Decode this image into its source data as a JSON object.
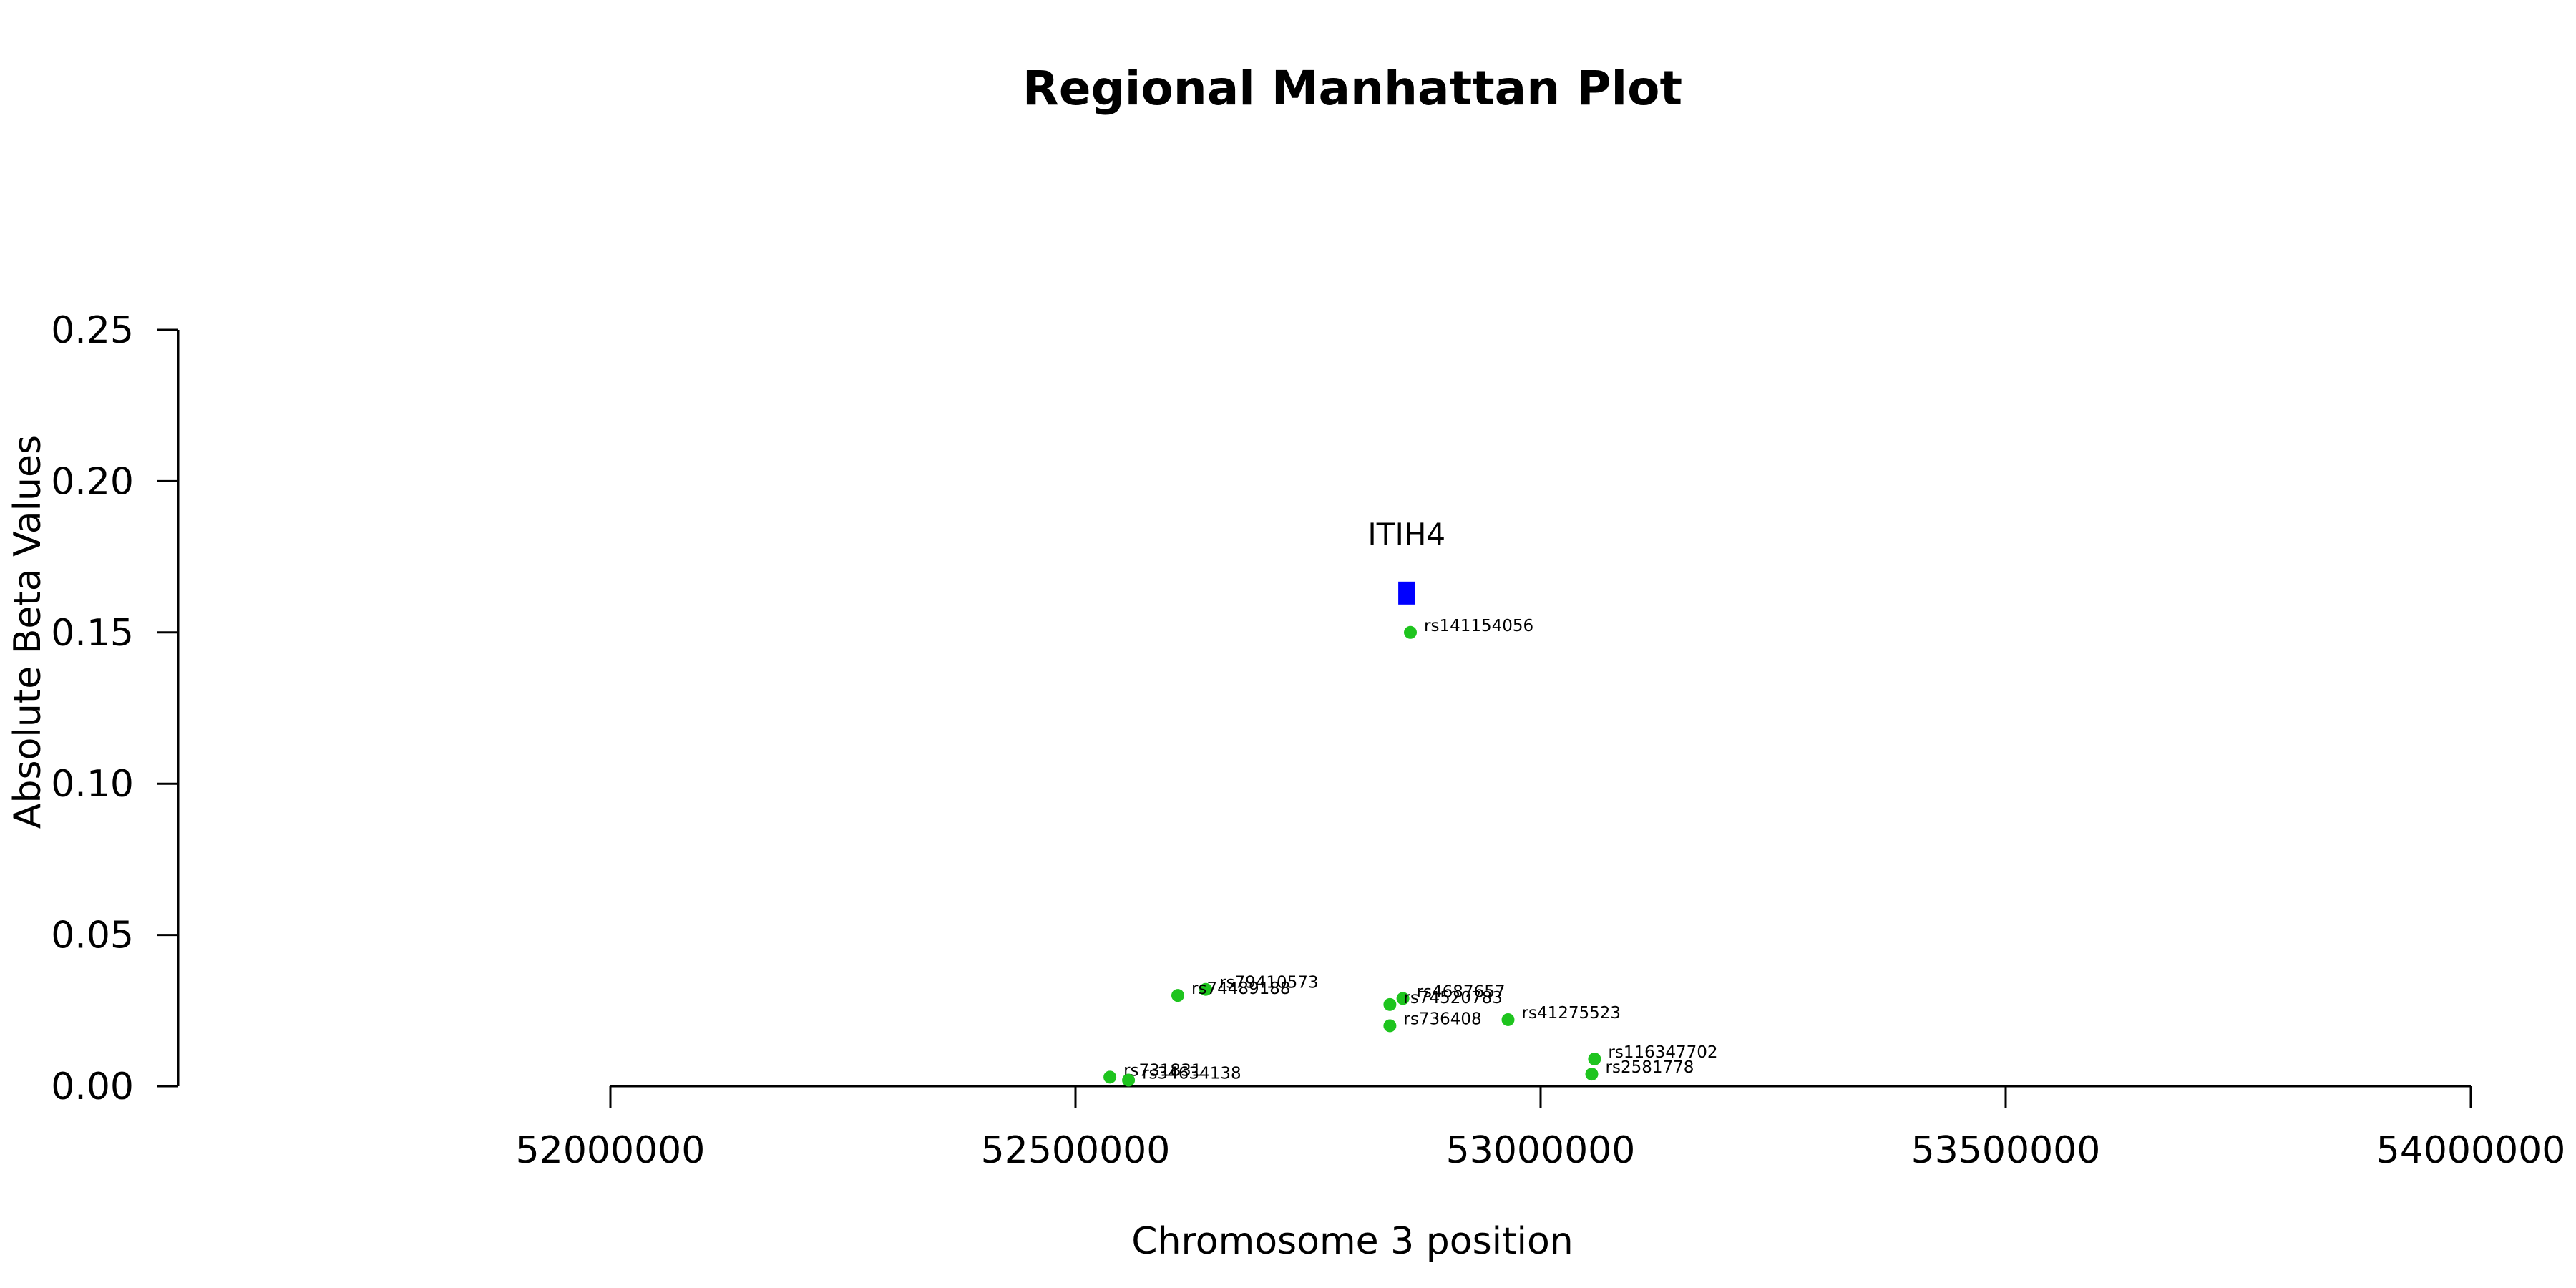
{
  "chart_data": {
    "type": "scatter",
    "title": "Regional Manhattan Plot",
    "xlabel": "Chromosome 3 position",
    "ylabel": "Absolute Beta Values",
    "xlim": [
      52000000,
      54000000
    ],
    "ylim": [
      0,
      0.25
    ],
    "x_ticks": [
      "52000000",
      "52500000",
      "53000000",
      "53500000",
      "54000000"
    ],
    "y_ticks": [
      "0.00",
      "0.05",
      "0.10",
      "0.15",
      "0.20",
      "0.25"
    ],
    "point_color": "#1ec41e",
    "gene_color": "#0000ff",
    "genes": [
      {
        "name": "ITIH4",
        "start": 52847000,
        "end": 52865000,
        "y": 0.163
      }
    ],
    "points": [
      {
        "label": "rs141154056",
        "x": 52860000,
        "y": 0.15
      },
      {
        "label": "rs79410573",
        "x": 52640000,
        "y": 0.032
      },
      {
        "label": "rs74489188",
        "x": 52610000,
        "y": 0.03
      },
      {
        "label": "rs4687657",
        "x": 52852000,
        "y": 0.029
      },
      {
        "label": "rs74520783",
        "x": 52838000,
        "y": 0.027
      },
      {
        "label": "rs736408",
        "x": 52838000,
        "y": 0.02
      },
      {
        "label": "rs41275523",
        "x": 52965000,
        "y": 0.022
      },
      {
        "label": "rs116347702",
        "x": 53058000,
        "y": 0.009
      },
      {
        "label": "rs2581778",
        "x": 53055000,
        "y": 0.004
      },
      {
        "label": "rs731831",
        "x": 52537000,
        "y": 0.003
      },
      {
        "label": "rs34634138",
        "x": 52557000,
        "y": 0.002
      }
    ]
  }
}
